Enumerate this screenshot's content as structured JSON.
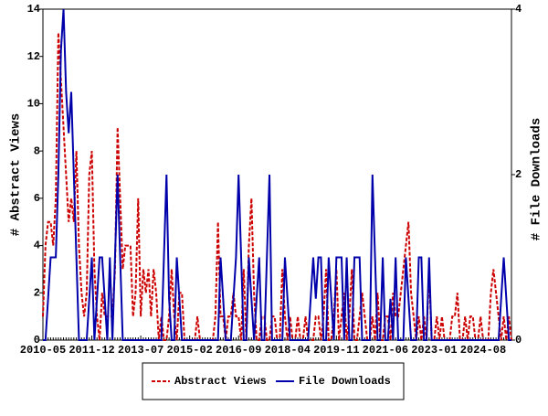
{
  "chart_data": {
    "type": "line",
    "ylabel": "# Abstract Views",
    "y2label": "# File Downloads",
    "x": [
      "2010-05",
      "2010-06",
      "2010-07",
      "2010-08",
      "2010-09",
      "2010-10",
      "2010-11",
      "2010-12",
      "2011-01",
      "2011-02",
      "2011-03",
      "2011-04",
      "2011-05",
      "2011-06",
      "2011-07",
      "2011-08",
      "2011-09",
      "2011-10",
      "2011-11",
      "2011-12",
      "2012-01",
      "2012-02",
      "2012-03",
      "2012-04",
      "2012-05",
      "2012-06",
      "2012-07",
      "2012-08",
      "2012-09",
      "2012-10",
      "2012-11",
      "2012-12",
      "2013-01",
      "2013-02",
      "2013-03",
      "2013-04",
      "2013-05",
      "2013-06",
      "2013-07",
      "2013-08",
      "2013-09",
      "2013-10",
      "2013-11",
      "2013-12",
      "2014-01",
      "2014-02",
      "2014-03",
      "2014-04",
      "2014-05",
      "2014-06",
      "2014-07",
      "2014-08",
      "2014-09",
      "2014-10",
      "2014-11",
      "2014-12",
      "2015-01",
      "2015-02",
      "2015-03",
      "2015-04",
      "2015-05",
      "2015-06",
      "2015-07",
      "2015-08",
      "2015-09",
      "2015-10",
      "2015-11",
      "2015-12",
      "2016-01",
      "2016-02",
      "2016-03",
      "2016-04",
      "2016-05",
      "2016-06",
      "2016-07",
      "2016-08",
      "2016-09",
      "2016-10",
      "2016-11",
      "2016-12",
      "2017-01",
      "2017-02",
      "2017-03",
      "2017-04",
      "2017-05",
      "2017-06",
      "2017-07",
      "2017-08",
      "2017-09",
      "2017-10",
      "2017-11",
      "2017-12",
      "2018-01",
      "2018-02",
      "2018-03",
      "2018-04",
      "2018-05",
      "2018-06",
      "2018-07",
      "2018-08",
      "2018-09",
      "2018-10",
      "2018-11",
      "2018-12",
      "2019-01",
      "2019-02",
      "2019-03",
      "2019-04",
      "2019-05",
      "2019-06",
      "2019-07",
      "2019-08",
      "2019-09",
      "2019-10",
      "2019-11",
      "2019-12",
      "2020-01",
      "2020-02",
      "2020-03",
      "2020-04",
      "2020-05",
      "2020-06",
      "2020-07",
      "2020-08",
      "2020-09",
      "2020-10",
      "2020-11",
      "2020-12",
      "2021-01",
      "2021-02",
      "2021-03",
      "2021-04",
      "2021-05",
      "2021-06",
      "2021-07",
      "2021-08",
      "2021-09",
      "2021-10",
      "2021-11",
      "2021-12",
      "2022-01",
      "2022-02",
      "2022-03",
      "2022-04",
      "2022-05",
      "2022-06",
      "2022-07",
      "2022-08",
      "2022-09",
      "2022-10",
      "2022-11",
      "2022-12",
      "2023-01",
      "2023-02",
      "2023-03",
      "2023-04",
      "2023-05",
      "2023-06",
      "2023-07",
      "2023-08",
      "2023-09",
      "2023-10",
      "2023-11",
      "2023-12",
      "2024-01",
      "2024-02",
      "2024-03",
      "2024-04",
      "2024-05",
      "2024-06",
      "2024-07",
      "2024-08",
      "2024-09",
      "2024-10",
      "2024-11",
      "2024-12",
      "2025-01",
      "2025-02",
      "2025-03",
      "2025-04",
      "2025-05",
      "2025-06",
      "2025-07"
    ],
    "series": [
      {
        "name": "Abstract Views",
        "color": "#cc0000",
        "dash": true,
        "values": [
          1,
          4,
          5,
          5,
          4,
          6,
          13,
          11,
          9,
          7,
          5,
          6,
          5,
          8,
          4,
          2,
          1,
          2,
          7,
          8,
          3,
          1,
          0,
          2,
          1,
          1,
          1,
          1,
          3,
          9,
          6,
          3,
          4,
          4,
          4,
          1,
          2,
          6,
          1,
          3,
          2,
          3,
          1,
          3,
          2,
          0,
          1,
          0,
          0,
          1,
          3,
          1,
          0,
          2,
          2,
          0,
          0,
          0,
          0,
          0,
          1,
          0,
          0,
          0,
          0,
          0,
          0,
          1,
          5,
          1,
          1,
          0,
          1,
          1,
          2,
          1,
          1,
          0,
          3,
          0,
          4,
          6,
          2,
          0,
          0,
          1,
          1,
          0,
          0,
          1,
          1,
          0,
          0,
          3,
          1,
          0,
          1,
          0,
          0,
          1,
          0,
          0,
          1,
          0,
          0,
          0,
          1,
          1,
          0,
          1,
          3,
          0,
          0,
          1,
          3,
          0,
          1,
          2,
          0,
          1,
          3,
          0,
          0,
          1,
          2,
          1,
          0,
          0,
          1,
          0,
          2,
          0,
          0,
          1,
          1,
          0,
          2,
          1,
          1,
          2,
          3,
          4,
          5,
          2,
          1,
          0,
          1,
          0,
          1,
          0,
          3,
          0,
          0,
          1,
          0,
          1,
          0,
          0,
          0,
          1,
          1,
          2,
          0,
          0,
          1,
          0,
          1,
          1,
          0,
          0,
          1,
          0,
          0,
          0,
          2,
          3,
          2,
          1,
          0,
          1,
          0,
          1,
          0
        ]
      },
      {
        "name": "File Downloads",
        "color": "#0000aa",
        "axis": "y2",
        "values": [
          0,
          0,
          0.5,
          1,
          1,
          1,
          2,
          3.5,
          4,
          3,
          2.5,
          3,
          2,
          1,
          0,
          0,
          0,
          0,
          0.5,
          1,
          0,
          0.5,
          1,
          1,
          0.5,
          0,
          1,
          0,
          1,
          2,
          1,
          0,
          0,
          0,
          0,
          0,
          0,
          0,
          0,
          0,
          0,
          0,
          0,
          0,
          0,
          0,
          0,
          1,
          2,
          0.5,
          0,
          0,
          1,
          0.5,
          0,
          0,
          0,
          0,
          0,
          0,
          0,
          0,
          0,
          0,
          0,
          0,
          0,
          0,
          0,
          1,
          0.5,
          0,
          0,
          0,
          0.5,
          1,
          2,
          1,
          0,
          0,
          1,
          0.5,
          0,
          0.5,
          1,
          0,
          0,
          1,
          2,
          0,
          0,
          0,
          0,
          0,
          1,
          0.5,
          0,
          0,
          0,
          0,
          0,
          0,
          0,
          0,
          0.5,
          1,
          0.5,
          1,
          1,
          0,
          0,
          1,
          0.5,
          0,
          1,
          1,
          1,
          0,
          1,
          0,
          0,
          1,
          1,
          1,
          0,
          0,
          0,
          0,
          2,
          1,
          0,
          0,
          1,
          0,
          0,
          0.5,
          0,
          1,
          0,
          0,
          0,
          1,
          0.5,
          0,
          0,
          0,
          1,
          1,
          0,
          0,
          1,
          0,
          0,
          0,
          0,
          0,
          0,
          0,
          0,
          0,
          0,
          0,
          0,
          0,
          0,
          0,
          0,
          0,
          0,
          0,
          0,
          0,
          0,
          0,
          0,
          0,
          0,
          0,
          0.5,
          1,
          0.5,
          0,
          0
        ]
      }
    ],
    "ylim": [
      0,
      14
    ],
    "yticks": [
      0,
      2,
      4,
      6,
      8,
      10,
      12,
      14
    ],
    "y2lim": [
      0,
      4
    ],
    "y2ticks": [
      0,
      2,
      4
    ]
  }
}
